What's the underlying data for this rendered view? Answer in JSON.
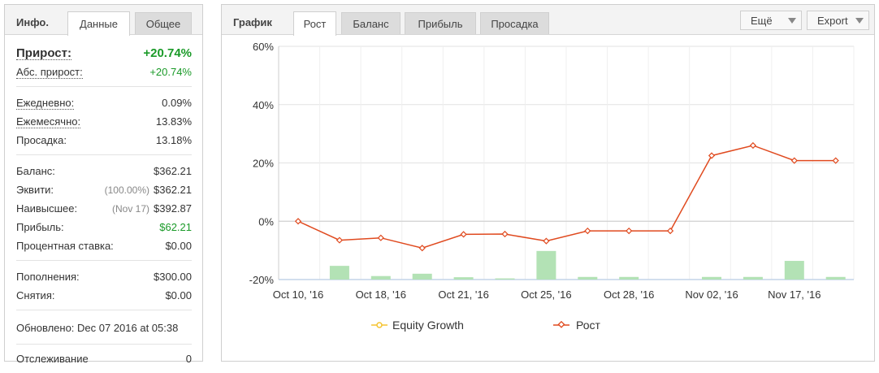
{
  "info": {
    "title": "Инфо.",
    "tabs": [
      "Данные",
      "Общее"
    ],
    "growth_label": "Прирост:",
    "growth_value": "+20.74%",
    "abs_growth_label": "Абс. прирост:",
    "abs_growth_value": "+20.74%",
    "daily_label": "Ежедневно:",
    "daily_value": "0.09%",
    "monthly_label": "Ежемесячно:",
    "monthly_value": "13.83%",
    "drawdown_label": "Просадка:",
    "drawdown_value": "13.18%",
    "balance_label": "Баланс:",
    "balance_value": "$362.21",
    "equity_label": "Эквити:",
    "equity_pct": "(100.00%)",
    "equity_value": "$362.21",
    "highest_label": "Наивысшее:",
    "highest_date": "(Nov 17)",
    "highest_value": "$392.87",
    "profit_label": "Прибыль:",
    "profit_value": "$62.21",
    "interest_label": "Процентная ставка:",
    "interest_value": "$0.00",
    "deposits_label": "Пополнения:",
    "deposits_value": "$300.00",
    "withdrawals_label": "Снятия:",
    "withdrawals_value": "$0.00",
    "updated_text": "Обновлено: Dec 07 2016 at 05:38",
    "tracking_label": "Отслеживание",
    "tracking_value": "0"
  },
  "chart_panel": {
    "title": "График",
    "tabs": [
      "Рост",
      "Баланс",
      "Прибыль",
      "Просадка"
    ],
    "more_button": "Ещё",
    "export_button": "Export"
  },
  "colors": {
    "line": "#e04a1f",
    "bars": "#b3e2b5",
    "equity_legend": "#f5c431",
    "positive": "#1a9a28"
  },
  "chart_data": {
    "type": "line",
    "y_ticks": [
      "60%",
      "40%",
      "20%",
      "0%",
      "-20%"
    ],
    "ylim": [
      -20,
      60
    ],
    "x_tick_labels": [
      "Oct 10, '16",
      "Oct 18, '16",
      "Oct 21, '16",
      "Oct 25, '16",
      "Oct 28, '16",
      "Nov 02, '16",
      "Nov 17, '16"
    ],
    "series": [
      {
        "name": "Рост",
        "values": [
          0.0,
          -6.5,
          -5.7,
          -9.2,
          -4.5,
          -4.4,
          -6.8,
          -3.3,
          -3.3,
          -3.3,
          22.5,
          26.0,
          20.8,
          20.8
        ]
      },
      {
        "name": "Equity Growth",
        "values": []
      }
    ],
    "bars": [
      0,
      4.7,
      1.2,
      2.0,
      0.8,
      0.4,
      9.8,
      0.9,
      0.9,
      0,
      0.9,
      0.9,
      6.4,
      0.9
    ],
    "grid": true,
    "legend": [
      "Equity Growth",
      "Рост"
    ],
    "legend_position": "bottom"
  }
}
